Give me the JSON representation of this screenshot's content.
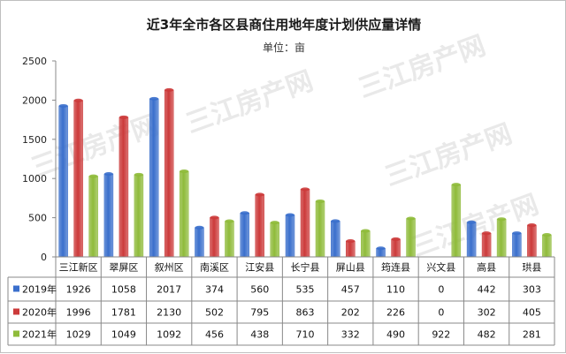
{
  "chart_data": {
    "type": "bar",
    "title": "近3年全市各区县商住用地年度计划供应量详情",
    "subtitle": "单位：亩",
    "watermark": "三江房产网",
    "categories": [
      "三江新区",
      "翠屏区",
      "叙州区",
      "南溪区",
      "江安县",
      "长宁县",
      "屏山县",
      "筠连县",
      "兴文县",
      "高县",
      "珙县"
    ],
    "series": [
      {
        "name": "2019年",
        "color": "#3a6fcc",
        "values": [
          1926,
          1058,
          2017,
          374,
          560,
          535,
          457,
          110,
          0,
          442,
          303
        ]
      },
      {
        "name": "2020年",
        "color": "#cc3a3a",
        "values": [
          1996,
          1781,
          2130,
          502,
          795,
          863,
          202,
          226,
          0,
          302,
          405
        ]
      },
      {
        "name": "2021年",
        "color": "#8fbb3a",
        "values": [
          1029,
          1049,
          1092,
          456,
          438,
          710,
          332,
          490,
          922,
          482,
          281
        ]
      }
    ],
    "ylim": [
      0,
      2500
    ],
    "yticks": [
      0,
      500,
      1000,
      1500,
      2000,
      2500
    ],
    "grid": false,
    "data_table": true
  }
}
